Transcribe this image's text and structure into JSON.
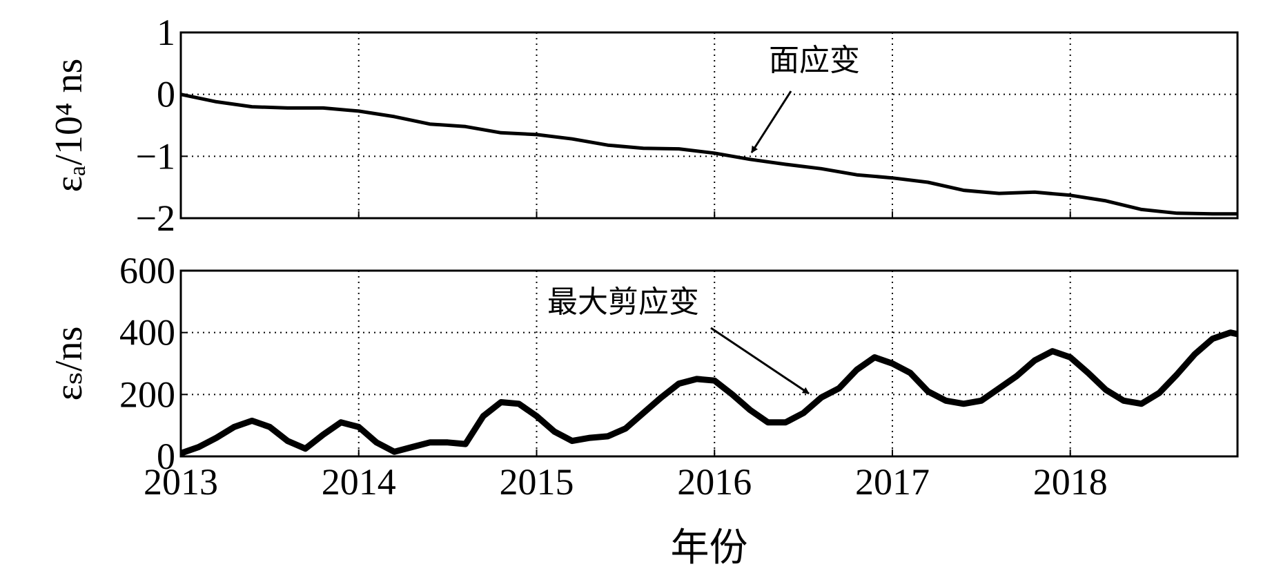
{
  "chart_data": [
    {
      "type": "line",
      "ylabel": "εₐ/10⁴ ns",
      "annotation": "面应变",
      "x": [
        2013.0,
        2013.2,
        2013.4,
        2013.6,
        2013.8,
        2014.0,
        2014.2,
        2014.4,
        2014.6,
        2014.8,
        2015.0,
        2015.2,
        2015.4,
        2015.6,
        2015.8,
        2016.0,
        2016.2,
        2016.4,
        2016.6,
        2016.8,
        2017.0,
        2017.2,
        2017.4,
        2017.6,
        2017.8,
        2018.0,
        2018.2,
        2018.4,
        2018.6,
        2018.8,
        2018.94
      ],
      "series": [
        {
          "name": "面应变",
          "color": "#000000",
          "values": [
            0.0,
            -0.12,
            -0.2,
            -0.22,
            -0.22,
            -0.27,
            -0.36,
            -0.48,
            -0.52,
            -0.62,
            -0.65,
            -0.72,
            -0.82,
            -0.87,
            -0.88,
            -0.95,
            -1.05,
            -1.13,
            -1.2,
            -1.3,
            -1.35,
            -1.42,
            -1.55,
            -1.6,
            -1.58,
            -1.63,
            -1.72,
            -1.86,
            -1.92,
            -1.93,
            -1.93
          ]
        }
      ],
      "xlim": [
        2013,
        2018.94
      ],
      "xticks": [
        2013,
        2014,
        2015,
        2016,
        2017,
        2018
      ],
      "ylim": [
        -2,
        1
      ],
      "yticks": [
        {
          "value": -2,
          "label": "−2"
        },
        {
          "value": -1,
          "label": "−1"
        },
        0,
        1
      ],
      "grid": true
    },
    {
      "type": "line",
      "ylabel": "εₛ/ns",
      "xlabel": "年份",
      "annotation": "最大剪应变",
      "x": [
        2013.0,
        2013.1,
        2013.2,
        2013.3,
        2013.4,
        2013.5,
        2013.6,
        2013.7,
        2013.8,
        2013.9,
        2014.0,
        2014.1,
        2014.2,
        2014.3,
        2014.4,
        2014.5,
        2014.6,
        2014.7,
        2014.8,
        2014.9,
        2015.0,
        2015.1,
        2015.2,
        2015.3,
        2015.4,
        2015.5,
        2015.6,
        2015.7,
        2015.8,
        2015.9,
        2016.0,
        2016.1,
        2016.2,
        2016.3,
        2016.4,
        2016.5,
        2016.6,
        2016.7,
        2016.8,
        2016.9,
        2017.0,
        2017.1,
        2017.2,
        2017.3,
        2017.4,
        2017.5,
        2017.6,
        2017.7,
        2017.8,
        2017.9,
        2018.0,
        2018.1,
        2018.2,
        2018.3,
        2018.4,
        2018.5,
        2018.6,
        2018.7,
        2018.8,
        2018.9,
        2018.94
      ],
      "series": [
        {
          "name": "最大剪应变",
          "color": "#000000",
          "values": [
            10,
            30,
            60,
            95,
            115,
            95,
            50,
            25,
            70,
            110,
            95,
            45,
            15,
            30,
            45,
            45,
            40,
            130,
            175,
            170,
            130,
            80,
            50,
            60,
            65,
            90,
            140,
            190,
            235,
            250,
            245,
            200,
            150,
            110,
            110,
            140,
            190,
            220,
            280,
            320,
            300,
            270,
            210,
            180,
            170,
            180,
            220,
            260,
            310,
            340,
            320,
            270,
            215,
            180,
            170,
            205,
            265,
            330,
            380,
            400,
            395
          ]
        }
      ],
      "xlim": [
        2013,
        2018.94
      ],
      "xticks": [
        2013,
        2014,
        2015,
        2016,
        2017,
        2018
      ],
      "ylim": [
        0,
        600
      ],
      "yticks": [
        0,
        200,
        400,
        600
      ],
      "grid": true
    }
  ]
}
